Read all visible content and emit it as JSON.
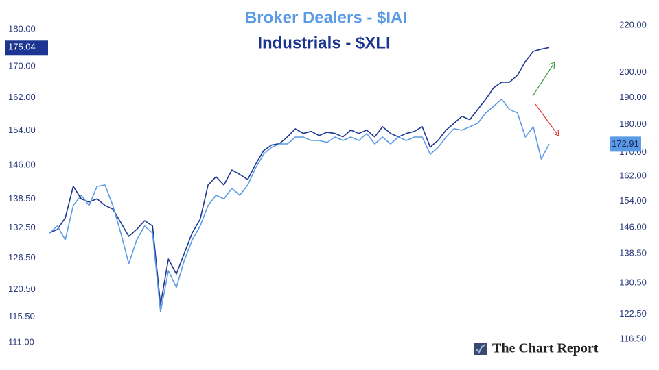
{
  "chart_data": {
    "type": "line",
    "title": "Broker Dealers - $IAI",
    "subtitle": "Industrials - $XLI",
    "watermark": "The Chart Report",
    "log_scale": true,
    "grid": false,
    "ylim": [
      108.7,
      184.4
    ],
    "yticks": [
      {
        "value": 111,
        "label": "111.00"
      },
      {
        "value": 115.5,
        "label": "115.50"
      },
      {
        "value": 120.5,
        "label": "120.50"
      },
      {
        "value": 126.5,
        "label": "126.50"
      },
      {
        "value": 132.5,
        "label": "132.50"
      },
      {
        "value": 138.5,
        "label": "138.50"
      },
      {
        "value": 146,
        "label": "146.00"
      },
      {
        "value": 154,
        "label": "154.00"
      },
      {
        "value": 162,
        "label": "162.00"
      },
      {
        "value": 170,
        "label": "170.00"
      },
      {
        "value": 180,
        "label": "180.00"
      }
    ],
    "y2lim": [
      112.5,
      225.2
    ],
    "y2ticks": [
      {
        "value": 116.5,
        "label": "116.50"
      },
      {
        "value": 122.5,
        "label": "122.50"
      },
      {
        "value": 130.5,
        "label": "130.50"
      },
      {
        "value": 138.5,
        "label": "138.50"
      },
      {
        "value": 146,
        "label": "146.00"
      },
      {
        "value": 154,
        "label": "154.00"
      },
      {
        "value": 162,
        "label": "162.00"
      },
      {
        "value": 170,
        "label": "170.00"
      },
      {
        "value": 180,
        "label": "180.00"
      },
      {
        "value": 190,
        "label": "190.00"
      },
      {
        "value": 200,
        "label": "200.00"
      },
      {
        "value": 220,
        "label": "220.00"
      }
    ],
    "series": [
      {
        "color": "#1b3590",
        "axis": "y",
        "values": [
          131.5,
          132.2,
          134.6,
          141.3,
          138.6,
          137.9,
          138.6,
          137.2,
          136.4,
          133.6,
          130.8,
          132.2,
          134.0,
          132.9,
          117.7,
          126.3,
          123.4,
          127.4,
          131.5,
          134.3,
          141.6,
          143.4,
          141.6,
          144.9,
          143.9,
          142.8,
          146.2,
          149.3,
          150.6,
          150.9,
          152.5,
          154.4,
          153.3,
          153.8,
          152.8,
          153.6,
          153.3,
          152.5,
          154.1,
          153.3,
          154.1,
          152.5,
          154.9,
          153.3,
          152.5,
          153.3,
          153.8,
          154.9,
          150.1,
          151.7,
          154.1,
          155.7,
          157.4,
          156.6,
          159.1,
          161.6,
          164.5,
          165.9,
          165.9,
          167.7,
          171.3,
          174.0,
          174.6,
          175.04
        ]
      },
      {
        "color": "#5b9be6",
        "axis": "y2",
        "values": [
          144.4,
          146.5,
          142.4,
          152.7,
          155.9,
          152.7,
          158.7,
          159.2,
          152.7,
          144.4,
          135.7,
          142.4,
          146.5,
          144.4,
          123.1,
          133.8,
          129.3,
          136.6,
          142.4,
          146.5,
          152.7,
          155.9,
          154.8,
          158.1,
          155.9,
          159.2,
          164.8,
          169.4,
          171.8,
          173.0,
          173.0,
          175.4,
          175.4,
          174.2,
          174.2,
          173.5,
          175.4,
          174.2,
          175.4,
          174.2,
          176.7,
          173.0,
          175.4,
          173.0,
          175.4,
          174.2,
          175.4,
          175.4,
          169.4,
          171.8,
          175.4,
          178.4,
          177.9,
          179.1,
          180.4,
          184.2,
          186.7,
          189.4,
          185.5,
          184.2,
          175.4,
          179.1,
          167.8,
          172.91
        ]
      }
    ]
  }
}
